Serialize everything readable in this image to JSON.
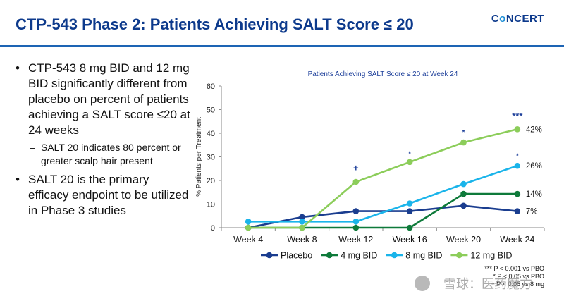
{
  "slide": {
    "title": "CTP-543 Phase 2: Patients Achieving SALT Score ≤ 20",
    "logo": {
      "prefix": "C",
      "o": "o",
      "suffix": "NCERT"
    },
    "bullets": [
      {
        "level": 1,
        "text": "CTP-543 8 mg BID and 12 mg BID significantly different from placebo on percent of patients achieving a SALT score ≤20 at 24 weeks"
      },
      {
        "level": 2,
        "text": "SALT 20 indicates 80 percent or greater scalp hair present"
      },
      {
        "level": 1,
        "text": "SALT 20 is the primary efficacy endpoint to be utilized in Phase 3 studies"
      }
    ],
    "bullet_glyph": "•",
    "sub_bullet_glyph": "–",
    "watermark": "雪球：医药魔方"
  },
  "chart_data": {
    "type": "line",
    "title": "Patients Achieving SALT Score ≤ 20 at Week 24",
    "xlabel": "",
    "ylabel": "% Patients per Treatment",
    "categories": [
      "Week 4",
      "Week 8",
      "Week 12",
      "Week 16",
      "Week 20",
      "Week 24"
    ],
    "ylim": [
      0,
      60
    ],
    "yticks": [
      0,
      10,
      20,
      30,
      40,
      50,
      60
    ],
    "grid": false,
    "legend_position": "bottom",
    "series": [
      {
        "name": "Placebo",
        "color": "#1a3d8f",
        "values": [
          0,
          4.5,
          7,
          7,
          9.3,
          7
        ],
        "end_label": "7%"
      },
      {
        "name": "4 mg BID",
        "color": "#0e7a3a",
        "values": [
          0,
          0,
          0,
          0,
          14.3,
          14.3
        ],
        "end_label": "14%"
      },
      {
        "name": "8 mg BID",
        "color": "#1ab4ea",
        "values": [
          2.6,
          2.6,
          2.6,
          10.3,
          18.5,
          26.2
        ],
        "end_label": "26%"
      },
      {
        "name": "12 mg BID",
        "color": "#8ccd5a",
        "values": [
          0,
          0,
          19.4,
          27.8,
          36.1,
          41.7
        ],
        "end_label": "42%"
      }
    ],
    "annotations": [
      {
        "category": "Week 12",
        "value": 24,
        "text": "+",
        "size": "large"
      },
      {
        "category": "Week 16",
        "value": 30.5,
        "text": "*",
        "size": "small"
      },
      {
        "category": "Week 20",
        "value": 39.5,
        "text": "*",
        "size": "small"
      },
      {
        "category": "Week 24",
        "value": 46,
        "text": "***",
        "size": "large"
      },
      {
        "category": "Week 24",
        "value": 29.5,
        "text": "*",
        "size": "small"
      }
    ],
    "footnotes": [
      "*** P < 0.001 vs PBO",
      "* P < 0.05 vs PBO",
      "+ P < 0.05 vs 8 mg"
    ]
  }
}
